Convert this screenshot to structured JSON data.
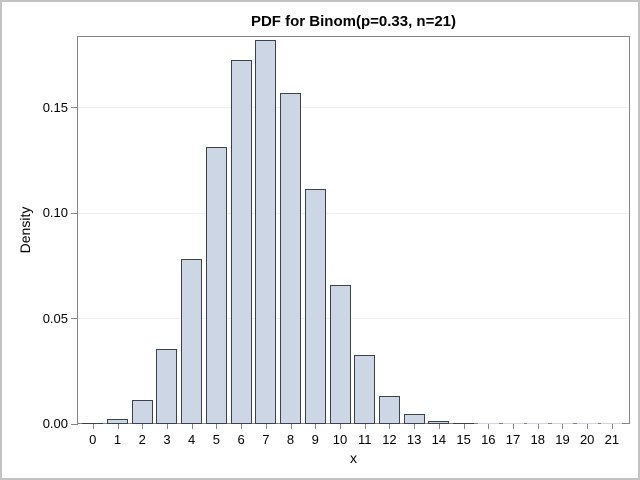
{
  "frame": {
    "background": "#ffffff",
    "border_color": "#c2c2c2"
  },
  "chart_data": {
    "type": "bar",
    "title": "PDF for Binom(p=0.33, n=21)",
    "xlabel": "x",
    "ylabel": "Density",
    "categories": [
      0,
      1,
      2,
      3,
      4,
      5,
      6,
      7,
      8,
      9,
      10,
      11,
      12,
      13,
      14,
      15,
      16,
      17,
      18,
      19,
      20,
      21
    ],
    "values": [
      0.00022,
      0.0023,
      0.01134,
      0.03536,
      0.07837,
      0.13124,
      0.17238,
      0.18194,
      0.15682,
      0.11157,
      0.06594,
      0.03248,
      0.01333,
      0.00455,
      0.00128,
      0.00029,
      5e-05,
      1e-05,
      0.0,
      0.0,
      0.0,
      0.0
    ],
    "x_tick_labels": [
      "0",
      "1",
      "2",
      "3",
      "4",
      "5",
      "6",
      "7",
      "8",
      "9",
      "10",
      "11",
      "12",
      "13",
      "14",
      "15",
      "16",
      "17",
      "18",
      "19",
      "20",
      "21"
    ],
    "y_ticks": {
      "values": [
        0,
        0.05,
        0.1,
        0.15
      ],
      "labels": [
        "0.00",
        "0.05",
        "0.10",
        "0.15"
      ]
    },
    "ylim": [
      0,
      0.1839
    ],
    "grid": "horizontal",
    "legend": "none",
    "colors": {
      "bar_fill": "#ccd6e4",
      "bar_border": "#3c4249",
      "axis": "#848484",
      "gridline": "#efefef",
      "text": "#000000"
    }
  }
}
